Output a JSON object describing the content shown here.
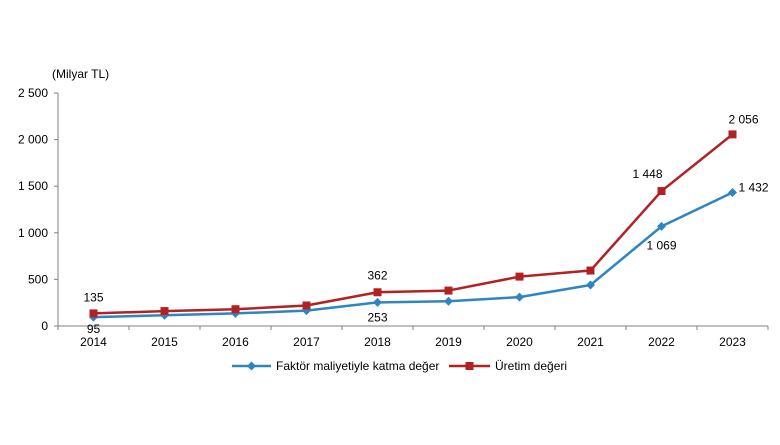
{
  "chart_data": {
    "type": "line",
    "ylabel": "(Milyar TL)",
    "ylim": [
      0,
      2500
    ],
    "yticks": [
      0,
      500,
      1000,
      1500,
      2000,
      2500
    ],
    "ytick_labels": [
      "0",
      "500",
      "1 000",
      "1 500",
      "2 000",
      "2 500"
    ],
    "categories": [
      "2014",
      "2015",
      "2016",
      "2017",
      "2018",
      "2019",
      "2020",
      "2021",
      "2022",
      "2023"
    ],
    "grid": false,
    "legend_position": "bottom",
    "series": [
      {
        "name": "Faktör maliyetiyle katma değer",
        "color": "#2E86C1",
        "marker": "diamond",
        "values": [
          95,
          115,
          135,
          165,
          253,
          265,
          310,
          440,
          1069,
          1432
        ],
        "labels": [
          {
            "index": 0,
            "text": "95"
          },
          {
            "index": 4,
            "text": "253"
          },
          {
            "index": 8,
            "text": "1 069"
          },
          {
            "index": 9,
            "text": "1 432"
          }
        ]
      },
      {
        "name": "Üretim değeri",
        "color": "#B22222",
        "marker": "square",
        "values": [
          135,
          160,
          180,
          220,
          362,
          380,
          530,
          595,
          1448,
          2056
        ],
        "labels": [
          {
            "index": 0,
            "text": "135"
          },
          {
            "index": 4,
            "text": "362"
          },
          {
            "index": 8,
            "text": "1 448"
          },
          {
            "index": 9,
            "text": "2 056"
          }
        ]
      }
    ]
  }
}
